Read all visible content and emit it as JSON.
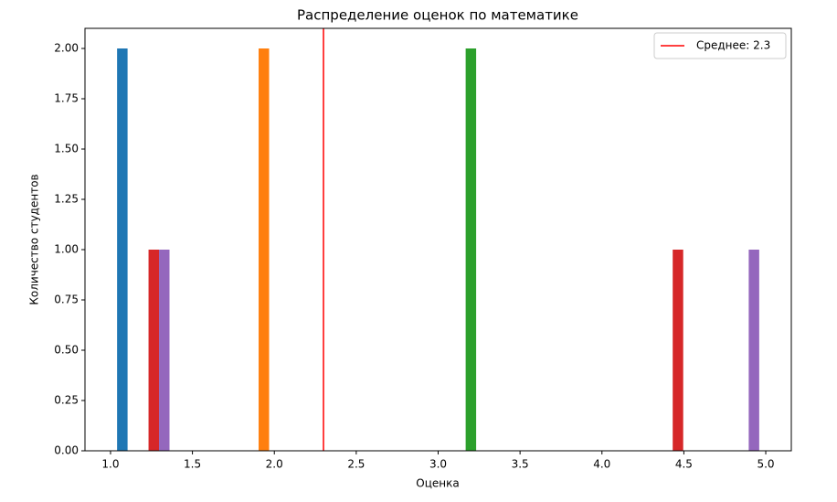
{
  "chart_data": {
    "type": "histogram",
    "title": "Распределение оценок по математике",
    "x_label": "Оценка",
    "y_label": "Количество студентов",
    "bins": [
      1.0,
      1.4,
      1.8,
      2.2,
      2.6,
      3.0,
      3.4,
      3.8,
      4.2,
      4.6,
      5.0
    ],
    "series": [
      {
        "color": "#1f77b4",
        "values": [
          2,
          0,
          0,
          0,
          0,
          0,
          0,
          0,
          0,
          0
        ]
      },
      {
        "color": "#ff7f0e",
        "values": [
          0,
          0,
          2,
          0,
          0,
          0,
          0,
          0,
          0,
          0
        ]
      },
      {
        "color": "#2ca02c",
        "values": [
          0,
          0,
          0,
          0,
          0,
          2,
          0,
          0,
          0,
          0
        ]
      },
      {
        "color": "#d62728",
        "values": [
          1,
          0,
          0,
          0,
          0,
          0,
          0,
          0,
          1,
          0
        ]
      },
      {
        "color": "#9467bd",
        "values": [
          1,
          0,
          0,
          0,
          0,
          0,
          0,
          0,
          0,
          1
        ]
      }
    ],
    "mean_line": {
      "value": 2.3,
      "label": "Среднее: 2.3",
      "color": "#ff0000"
    },
    "xlim": [
      0.844,
      5.156
    ],
    "ylim": [
      0,
      2.1
    ],
    "xticks": [
      {
        "value": 1,
        "label": "1.0"
      },
      1.5,
      {
        "value": 2,
        "label": "2.0"
      },
      2.5,
      {
        "value": 3,
        "label": "3.0"
      },
      3.5,
      {
        "value": 4,
        "label": "4.0"
      },
      4.5,
      {
        "value": 5,
        "label": "5.0"
      }
    ],
    "yticks": [
      {
        "value": 0,
        "label": "0.00"
      },
      {
        "value": 0.25,
        "label": "0.25"
      },
      {
        "value": 0.5,
        "label": "0.50"
      },
      {
        "value": 0.75,
        "label": "0.75"
      },
      {
        "value": 1,
        "label": "1.00"
      },
      {
        "value": 1.25,
        "label": "1.25"
      },
      {
        "value": 1.5,
        "label": "1.50"
      },
      {
        "value": 1.75,
        "label": "1.75"
      },
      {
        "value": 2,
        "label": "2.00"
      }
    ],
    "legend_position": "upper right"
  }
}
